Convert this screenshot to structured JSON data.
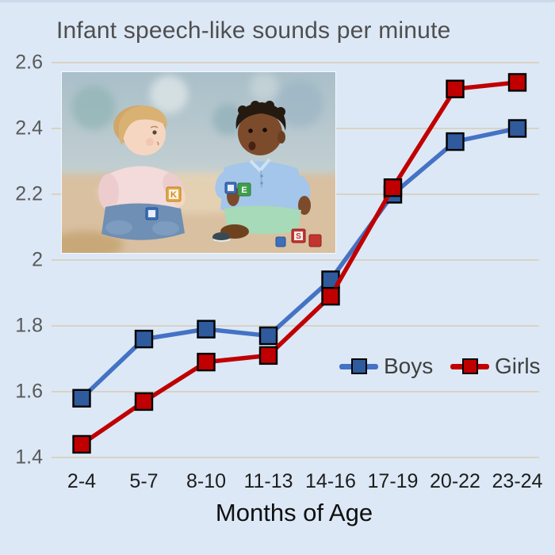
{
  "chart_data": {
    "type": "line",
    "title": "Infant speech-like sounds per minute",
    "categories": [
      "2-4",
      "5-7",
      "8-10",
      "11-13",
      "14-16",
      "17-19",
      "20-22",
      "23-24"
    ],
    "series": [
      {
        "name": "Boys",
        "line_color": "#4472c4",
        "marker_fill": "#2f5b9d",
        "marker": "square",
        "values": [
          1.58,
          1.76,
          1.79,
          1.77,
          1.94,
          2.2,
          2.36,
          2.4
        ]
      },
      {
        "name": "Girls",
        "line_color": "#c00000",
        "marker_fill": "#c00000",
        "marker": "square",
        "values": [
          1.44,
          1.57,
          1.69,
          1.71,
          1.89,
          2.22,
          2.52,
          2.54
        ]
      }
    ],
    "xlabel": "Months of Age",
    "ylabel": "",
    "ylim": [
      1.4,
      2.6
    ],
    "ytick_step": 0.2,
    "y_tick_labels": [
      "2.6",
      "2.4",
      "2.2",
      "2",
      "1.8",
      "1.6",
      "1.4"
    ],
    "grid": true,
    "gridline_color": "#d9d2c3",
    "legend_position": "inside-middle-right"
  },
  "colors": {
    "background": "#dce8f6",
    "title_text": "#4f4f4f",
    "y_tick_text": "#595959",
    "x_tick_text": "#1d1d1d",
    "axis_title_text": "#101010",
    "legend_text": "#3f3f3f"
  },
  "photo": {
    "alt": "Two toddlers sitting on the floor facing each other, playing with alphabet letter blocks",
    "block_letters": [
      "K",
      "E",
      "S"
    ]
  }
}
